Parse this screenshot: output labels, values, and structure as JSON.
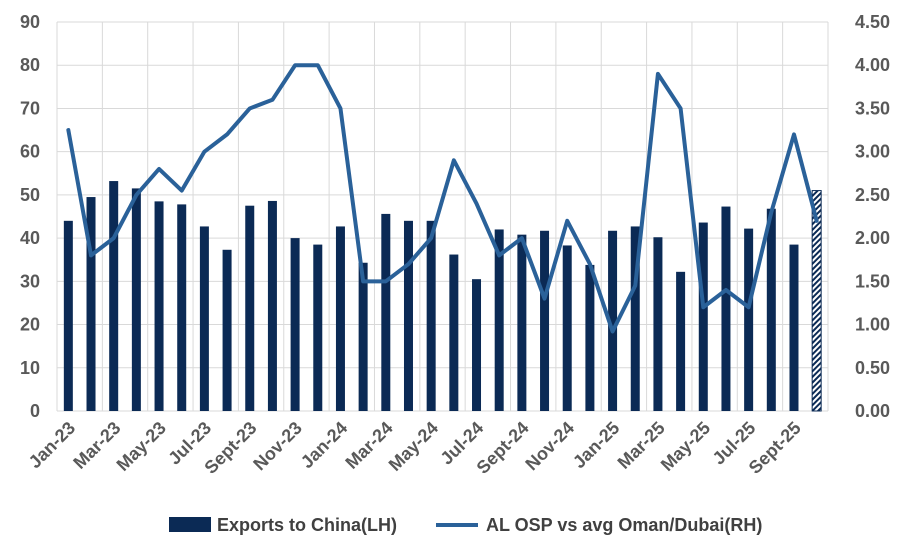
{
  "chart_data": {
    "type": "bar+line",
    "title": "",
    "categories": [
      "Jan-23",
      "Feb-23",
      "Mar-23",
      "Apr-23",
      "May-23",
      "Jun-23",
      "Jul-23",
      "Aug-23",
      "Sept-23",
      "Oct-23",
      "Nov-23",
      "Dec-23",
      "Jan-24",
      "Feb-24",
      "Mar-24",
      "Apr-24",
      "May-24",
      "Jun-24",
      "Jul-24",
      "Aug-24",
      "Sept-24",
      "Oct-24",
      "Nov-24",
      "Dec-24",
      "Jan-25",
      "Feb-25",
      "Mar-25",
      "Apr-25",
      "May-25",
      "Jun-25",
      "Jul-25",
      "Aug-25",
      "Sept-25",
      "Oct-25"
    ],
    "x_tick_labels": [
      "Jan-23",
      "Mar-23",
      "May-23",
      "Jul-23",
      "Sept-23",
      "Nov-23",
      "Jan-24",
      "Mar-24",
      "May-24",
      "Jul-24",
      "Sept-24",
      "Nov-24",
      "Jan-25",
      "Mar-25",
      "May-25",
      "Jul-25",
      "Sept-25"
    ],
    "series": [
      {
        "name": "Exports to China(LH)",
        "type": "bar",
        "axis": "left",
        "color": "#0b2a55",
        "values": [
          44,
          49.5,
          53.2,
          51.5,
          48.5,
          47.8,
          42.7,
          37.3,
          47.5,
          48.6,
          40,
          38.5,
          42.7,
          34.3,
          45.6,
          44,
          44,
          36.2,
          30.5,
          42,
          40.8,
          41.7,
          38.3,
          33.8,
          41.7,
          42.7,
          40.2,
          32.2,
          43.6,
          47.3,
          42.2,
          46.8,
          38.5,
          51
        ],
        "last_bar_hatched": true
      },
      {
        "name": "AL OSP vs avg Oman/Dubai(RH)",
        "type": "line",
        "axis": "right",
        "color": "#2a6199",
        "values": [
          3.25,
          1.8,
          2.0,
          2.5,
          2.8,
          2.55,
          3.0,
          3.2,
          3.5,
          3.6,
          4.0,
          4.0,
          3.5,
          1.5,
          1.5,
          1.7,
          2.0,
          2.9,
          2.4,
          1.8,
          2.0,
          1.3,
          2.2,
          1.7,
          0.92,
          1.45,
          3.9,
          3.5,
          1.2,
          1.4,
          1.2,
          2.3,
          3.2,
          2.2
        ]
      }
    ],
    "y_left": {
      "min": 0,
      "max": 90,
      "step": 10,
      "labels": [
        "0",
        "10",
        "20",
        "30",
        "40",
        "50",
        "60",
        "70",
        "80",
        "90"
      ]
    },
    "y_right": {
      "min": 0,
      "max": 4.5,
      "step": 0.5,
      "labels": [
        "0.00",
        "0.50",
        "1.00",
        "1.50",
        "2.00",
        "2.50",
        "3.00",
        "3.50",
        "4.00",
        "4.50"
      ]
    },
    "grid": true,
    "legend_position": "bottom"
  },
  "legend": {
    "bar_label": "Exports to China(LH)",
    "line_label": "AL OSP vs avg Oman/Dubai(RH)"
  }
}
